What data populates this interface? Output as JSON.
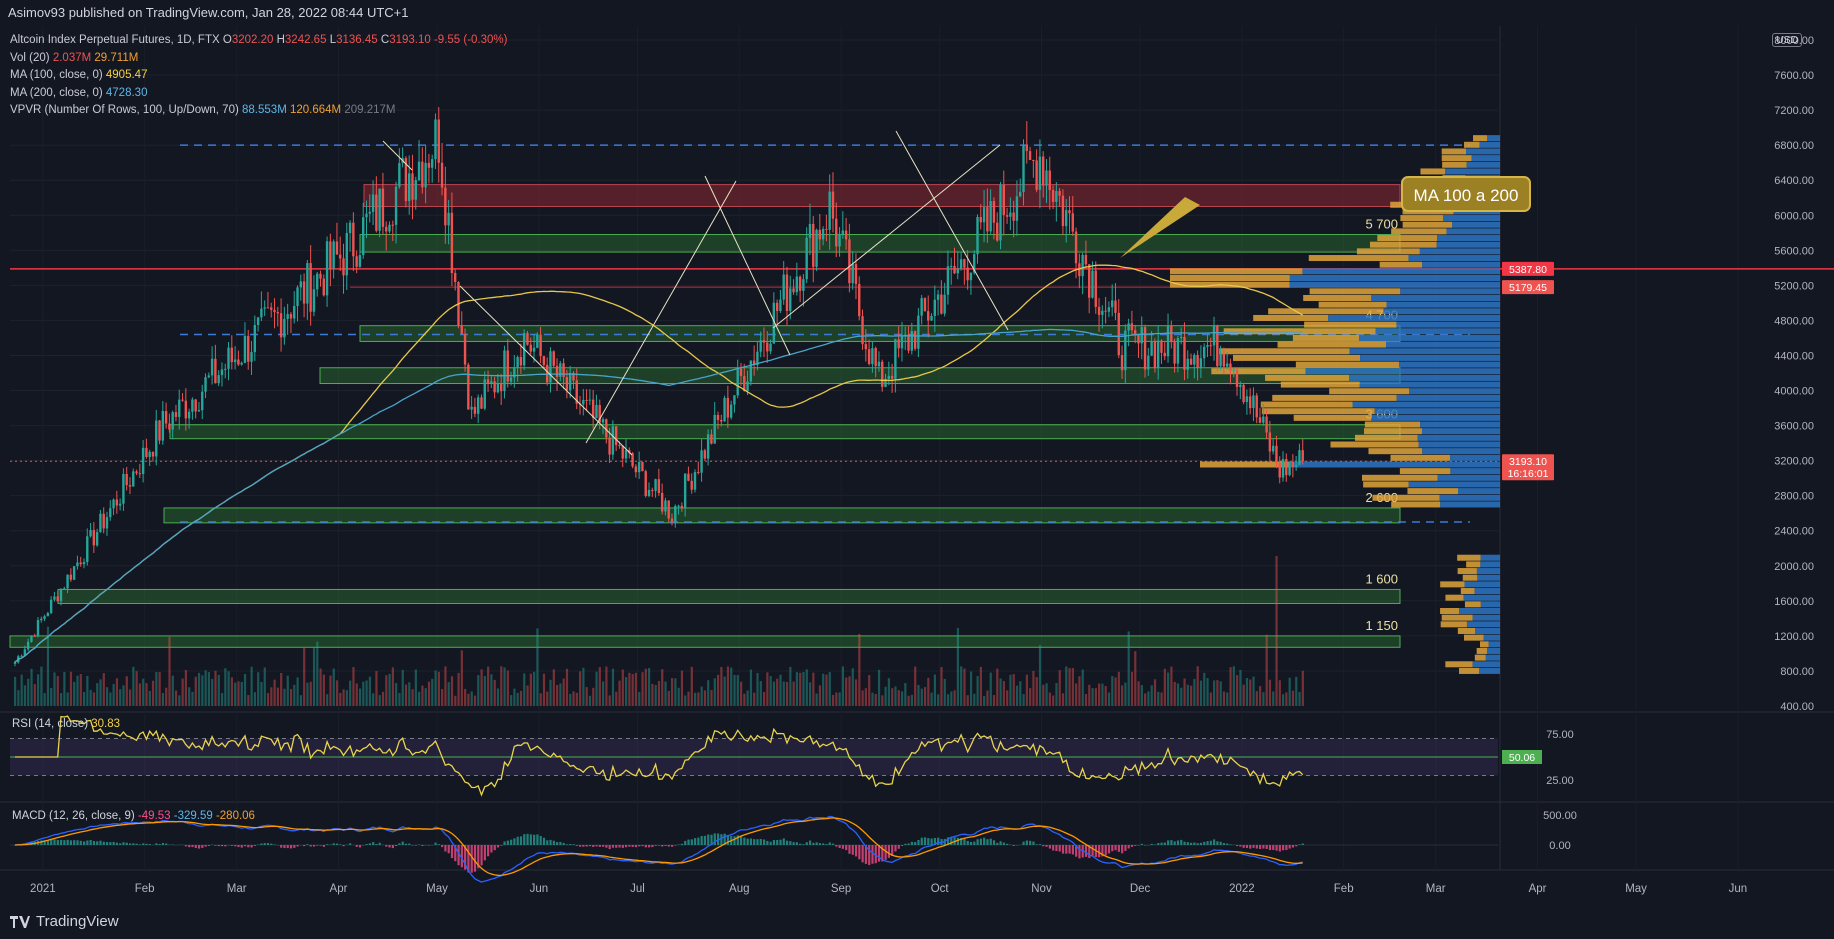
{
  "header": {
    "published": "Asimov93 published on TradingView.com, Jan 28, 2022 08:44 UTC+1"
  },
  "legend": {
    "symbol": "Altcoin Index Perpetual Futures, 1D, FTX",
    "o_label": "O",
    "o": "3202.20",
    "h_label": "H",
    "h": "3242.65",
    "l_label": "L",
    "l": "3136.45",
    "c_label": "C",
    "c": "3193.10",
    "change": "-9.55 (-0.30%)",
    "vol_label": "Vol (20)",
    "vol1": "2.037M",
    "vol2": "29.711M",
    "ma100_label": "MA (100, close, 0)",
    "ma100": "4905.47",
    "ma200_label": "MA (200, close, 0)",
    "ma200": "4728.30",
    "vpvr_label": "VPVR (Number Of Rows, 100, Up/Down, 70)",
    "vpvr1": "88.553M",
    "vpvr2": "120.664M",
    "vpvr3": "209.217M"
  },
  "rsi_legend": {
    "label": "RSI (14, close)",
    "value": "30.83"
  },
  "macd_legend": {
    "label": "MACD (12, 26, close, 9)",
    "v1": "-49.53",
    "v2": "-329.59",
    "v3": "-280.06"
  },
  "callout": "MA 100 a 200",
  "currency": "USD",
  "footer": {
    "brand": "TradingView"
  },
  "colors": {
    "up": "#26a69a",
    "down": "#ef5350",
    "ma100": "#e8c84a",
    "ma200": "#4aa3c9",
    "zone_fill": "rgba(56,160,60,0.30)",
    "zone_stroke": "#4caf50",
    "red_zone": "rgba(140,40,50,0.55)",
    "vpvr_up": "#2e76c4",
    "vpvr_down": "#e0a43a"
  },
  "chart_data": {
    "type": "candlestick",
    "title": "Altcoin Index Perpetual Futures, 1D, FTX",
    "y_axis_price": {
      "ticks": [
        800,
        1200,
        1600,
        2000,
        2400,
        2800,
        3200,
        3600,
        4000,
        4400,
        4800,
        5200,
        5600,
        6000,
        6400,
        6800,
        7200,
        7600,
        8000
      ],
      "range": [
        400,
        8000
      ]
    },
    "y_axis_extra_label": "400.00",
    "x_axis": {
      "ticks": [
        "2021",
        "Feb",
        "Mar",
        "Apr",
        "May",
        "Jun",
        "Jul",
        "Aug",
        "Sep",
        "Oct",
        "Nov",
        "Dec",
        "2022",
        "Feb",
        "Mar",
        "Apr",
        "May",
        "Jun"
      ]
    },
    "price_labels": [
      {
        "value": "5387.80",
        "price": 5387.8
      },
      {
        "value": "5179.45",
        "price": 5179.45
      },
      {
        "value": "3193.10",
        "price": 3193.1,
        "timer": "16:16:01"
      }
    ],
    "zones": [
      {
        "label": "",
        "low": 6100,
        "high": 6350,
        "kind": "red"
      },
      {
        "label": "5 700",
        "low": 5580,
        "high": 5780,
        "kind": "green"
      },
      {
        "label": "4 700",
        "low": 4560,
        "high": 4740,
        "kind": "green"
      },
      {
        "label": "",
        "low": 4080,
        "high": 4260,
        "kind": "green"
      },
      {
        "label": "3 600",
        "low": 3450,
        "high": 3610,
        "kind": "green"
      },
      {
        "label": "2 600",
        "low": 2490,
        "high": 2660,
        "kind": "green"
      },
      {
        "label": "1 600",
        "low": 1570,
        "high": 1730,
        "kind": "green"
      },
      {
        "label": "1 150",
        "low": 1070,
        "high": 1200,
        "kind": "green"
      }
    ],
    "key_points": [
      {
        "date": "2021-01-01",
        "close": 900
      },
      {
        "date": "2021-02-15",
        "close": 3600
      },
      {
        "date": "2021-04-12",
        "close": 5600
      },
      {
        "date": "2021-05-10",
        "close": 6900
      },
      {
        "date": "2021-05-20",
        "close": 3700
      },
      {
        "date": "2021-06-05",
        "close": 4600
      },
      {
        "date": "2021-07-20",
        "close": 2600
      },
      {
        "date": "2021-09-06",
        "close": 6100
      },
      {
        "date": "2021-09-21",
        "close": 4100
      },
      {
        "date": "2021-11-09",
        "close": 6700
      },
      {
        "date": "2021-12-04",
        "close": 4500
      },
      {
        "date": "2022-01-05",
        "close": 4500
      },
      {
        "date": "2022-01-21",
        "close": 3100
      },
      {
        "date": "2022-01-28",
        "close": 3193.1
      }
    ],
    "rsi": {
      "levels": [
        30,
        50,
        70
      ],
      "last": 30.83,
      "axis_ticks": [
        "75.00",
        "25.00"
      ],
      "marker": "50.06"
    },
    "macd": {
      "axis_ticks": [
        "500.00",
        "0.00"
      ],
      "macd": -329.59,
      "signal": -280.06,
      "hist": -49.53
    }
  }
}
